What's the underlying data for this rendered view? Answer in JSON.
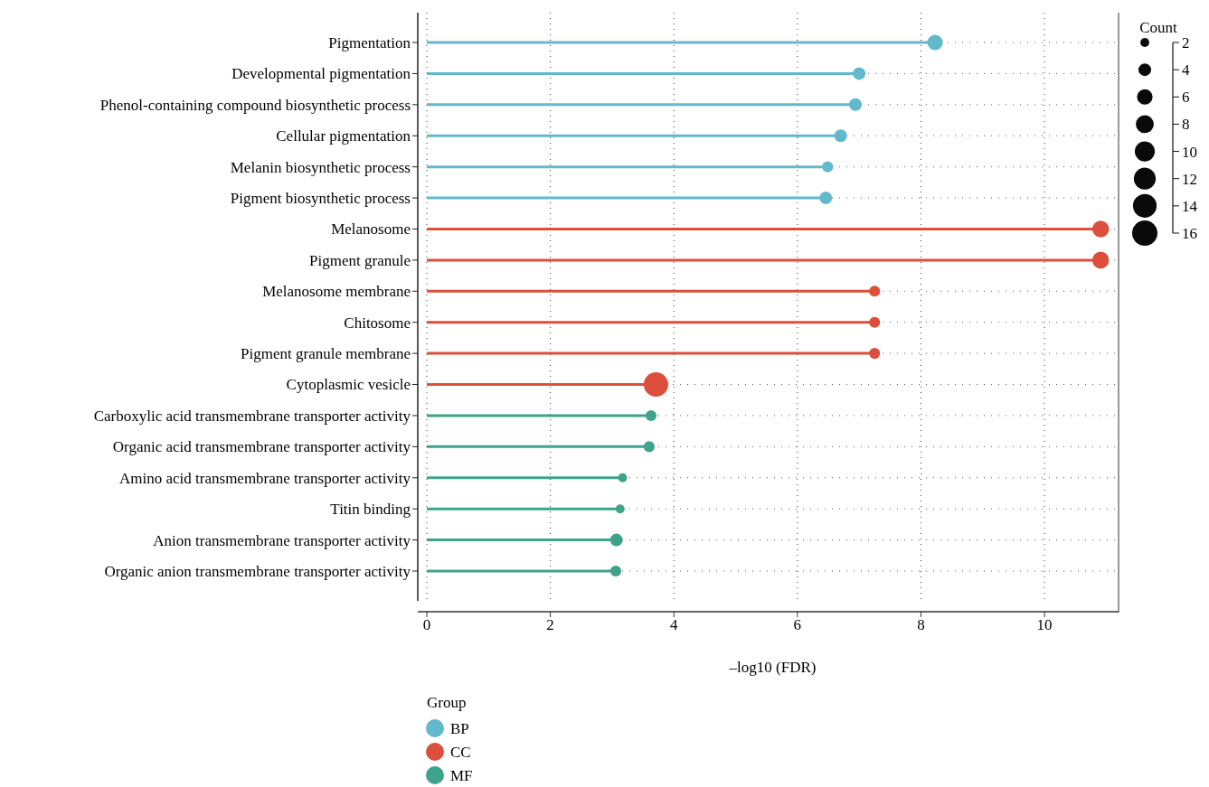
{
  "chart_data": {
    "type": "lollipop",
    "orientation": "horizontal",
    "xlabel": "–log10 (FDR)",
    "legend_title": "Group",
    "legend": "bottom",
    "grid": true,
    "marker": "circle",
    "categories": [
      "Pigmentation",
      "Developmental pigmentation",
      "Phenol-containing compound biosynthetic process",
      "Cellular pigmentation",
      "Melanin biosynthetic process",
      "Pigment biosynthetic process",
      "Melanosome",
      "Pigment granule",
      "Melanosome membrane",
      "Chitosome",
      "Pigment granule membrane",
      "Cytoplasmic vesicle",
      "Carboxylic acid transmembrane transporter activity",
      "Organic acid transmembrane transporter activity",
      "Amino acid transmembrane transporter activity",
      "Titin binding",
      "Anion transmembrane transporter activity",
      "Organic anion transmembrane transporter activity"
    ],
    "xlim": [
      0,
      11.2
    ],
    "xticks": [
      0,
      2,
      4,
      6,
      8,
      10
    ],
    "size_legend": [
      2,
      4,
      6,
      8,
      10,
      12,
      14,
      16
    ],
    "annotations": [
      "Count"
    ],
    "series": [
      {
        "name": "BP",
        "color": "#62b9cc",
        "values": [
          8.23,
          7.0,
          6.94,
          6.7,
          6.49,
          6.46,
          null,
          null,
          null,
          null,
          null,
          null,
          null,
          null,
          null,
          null,
          null,
          null
        ],
        "sizes": [
          6,
          4,
          4,
          4,
          3,
          4,
          null,
          null,
          null,
          null,
          null,
          null,
          null,
          null,
          null,
          null,
          null,
          null
        ]
      },
      {
        "name": "CC",
        "color": "#dc4f3c",
        "values": [
          null,
          null,
          null,
          null,
          null,
          null,
          10.91,
          10.91,
          7.25,
          7.25,
          7.25,
          3.71,
          null,
          null,
          null,
          null,
          null,
          null
        ],
        "sizes": [
          null,
          null,
          null,
          null,
          null,
          null,
          7,
          7,
          3,
          3,
          3,
          15,
          null,
          null,
          null,
          null,
          null,
          null
        ]
      },
      {
        "name": "MF",
        "color": "#3ea38a",
        "values": [
          null,
          null,
          null,
          null,
          null,
          null,
          null,
          null,
          null,
          null,
          null,
          null,
          3.63,
          3.6,
          3.17,
          3.13,
          3.07,
          3.06
        ],
        "sizes": [
          null,
          null,
          null,
          null,
          null,
          null,
          null,
          null,
          null,
          null,
          null,
          null,
          3,
          3,
          2,
          2,
          4,
          3
        ]
      }
    ]
  }
}
